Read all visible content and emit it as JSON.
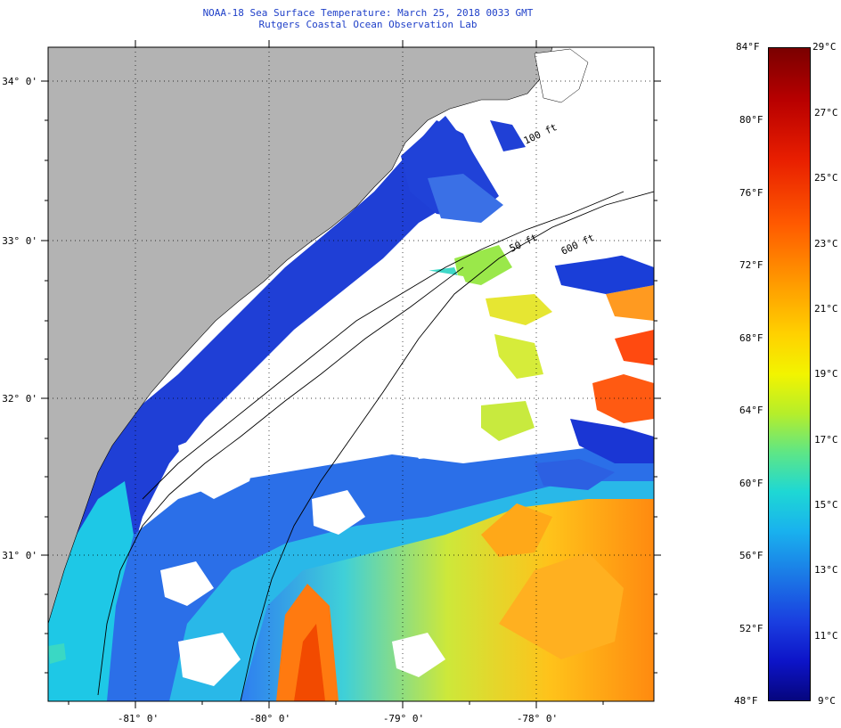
{
  "title": {
    "line1": "NOAA-18 Sea Surface Temperature:  March 25, 2018 0033 GMT",
    "line2": "Rutgers Coastal Ocean Observation Lab"
  },
  "map": {
    "lat_labels": [
      "34° 0'",
      "33° 0'",
      "32° 0'",
      "31° 0'"
    ],
    "lon_labels": [
      "-81° 0'",
      "-80° 0'",
      "-79° 0'",
      "-78° 0'"
    ],
    "isobath_labels": [
      "100 ft",
      "600 ft",
      "50 ft"
    ],
    "colors": {
      "land": "#b3b3b3",
      "cloud": "#ffffff",
      "frame": "#000000"
    }
  },
  "colorbar": {
    "fahrenheit": [
      "84°F",
      "80°F",
      "76°F",
      "72°F",
      "68°F",
      "64°F",
      "60°F",
      "56°F",
      "52°F",
      "48°F"
    ],
    "celsius": [
      "29°C",
      "27°C",
      "25°C",
      "23°C",
      "21°C",
      "19°C",
      "17°C",
      "15°C",
      "13°C",
      "11°C",
      "9°C"
    ]
  }
}
